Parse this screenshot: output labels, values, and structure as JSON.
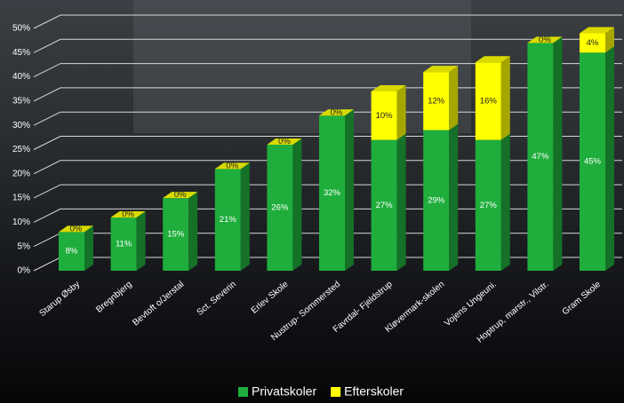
{
  "chart_data": {
    "type": "bar",
    "stacked": true,
    "categories": [
      "Starup Øsby",
      "Bregnbjerg",
      "Bevtoft o/Jerstal",
      "Sct. Severin",
      "Erlev Skole",
      "Nustrup- Sommersted",
      "Favrdal- Fjeldstrup",
      "Kløvermark-skolen",
      "Vojens Ungeuni.",
      "Hoptrup, marstr., Vilstr.",
      "Gram Skole"
    ],
    "series": [
      {
        "name": "Privatskoler",
        "color": "#1fae3c",
        "values": [
          8,
          11,
          15,
          21,
          26,
          32,
          27,
          29,
          27,
          47,
          45
        ],
        "value_labels": [
          "8%",
          "11%",
          "15%",
          "21%",
          "26%",
          "32%",
          "27%",
          "29%",
          "27%",
          "47%",
          "45%"
        ]
      },
      {
        "name": "Efterskoler",
        "color": "#ffff00",
        "values": [
          0,
          0,
          0,
          0,
          0,
          0,
          10,
          12,
          16,
          0,
          4
        ],
        "value_labels": [
          "0%",
          "0%",
          "0%",
          "0%",
          "0%",
          "0%",
          "10%",
          "12%",
          "16%",
          "0%",
          "4%"
        ]
      }
    ],
    "ylim": [
      0,
      50
    ],
    "yticks": [
      {
        "value": 0,
        "label": "0%"
      },
      {
        "value": 5,
        "label": "5%"
      },
      {
        "value": 10,
        "label": "10%"
      },
      {
        "value": 15,
        "label": "15%"
      },
      {
        "value": 20,
        "label": "20%"
      },
      {
        "value": 25,
        "label": "25%"
      },
      {
        "value": 30,
        "label": "30%"
      },
      {
        "value": 35,
        "label": "35%"
      },
      {
        "value": 40,
        "label": "40%"
      },
      {
        "value": 45,
        "label": "45%"
      },
      {
        "value": 50,
        "label": "50%"
      }
    ],
    "grid": true,
    "legend": "bottom"
  }
}
